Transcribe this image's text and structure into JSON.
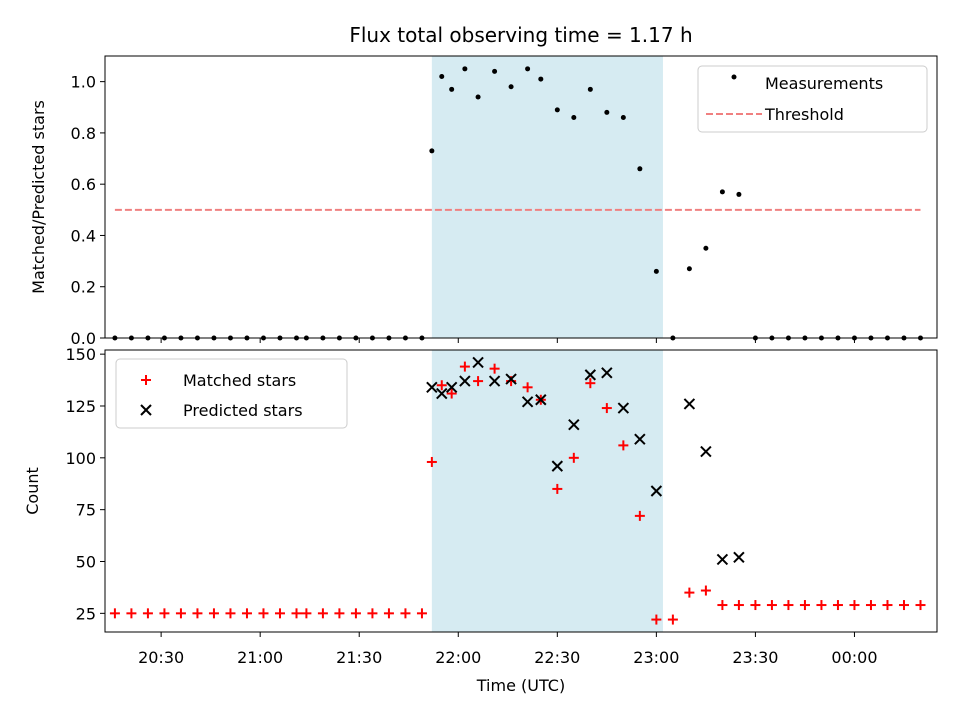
{
  "chart_data": {
    "type": "scatter",
    "title": "Flux total observing time = 1.17 h",
    "xlabel": "Time (UTC)",
    "x_range": [
      "20:13",
      "00:25"
    ],
    "x_ticks": [
      "20:30",
      "21:00",
      "21:30",
      "22:00",
      "22:30",
      "23:00",
      "23:30",
      "00:00"
    ],
    "shaded_interval": {
      "start": "21:52",
      "end": "23:02",
      "color": "#add8e6"
    },
    "x": [
      "20:16",
      "20:21",
      "20:26",
      "20:31",
      "20:36",
      "20:41",
      "20:46",
      "20:51",
      "20:56",
      "21:01",
      "21:06",
      "21:11",
      "21:14",
      "21:19",
      "21:24",
      "21:29",
      "21:34",
      "21:39",
      "21:44",
      "21:49",
      "21:52",
      "21:55",
      "21:58",
      "22:02",
      "22:06",
      "22:11",
      "22:16",
      "22:21",
      "22:25",
      "22:30",
      "22:35",
      "22:40",
      "22:45",
      "22:50",
      "22:55",
      "23:00",
      "23:05",
      "23:10",
      "23:15",
      "23:20",
      "23:25",
      "23:30",
      "23:35",
      "23:40",
      "23:45",
      "23:50",
      "23:55",
      "00:00",
      "00:05",
      "00:10",
      "00:15",
      "00:20"
    ],
    "panels": [
      {
        "ylabel": "Matched/Predicted stars",
        "ylim": [
          0,
          1.1
        ],
        "y_ticks": [
          "0.0",
          "0.2",
          "0.4",
          "0.6",
          "0.8",
          "1.0"
        ],
        "legend_position": "top-right",
        "series": [
          {
            "name": "Measurements",
            "marker": "dot",
            "color": "#000000",
            "points": [
              [
                "20:16",
                0
              ],
              [
                "20:21",
                0
              ],
              [
                "20:26",
                0
              ],
              [
                "20:31",
                0
              ],
              [
                "20:36",
                0
              ],
              [
                "20:41",
                0
              ],
              [
                "20:46",
                0
              ],
              [
                "20:51",
                0
              ],
              [
                "20:56",
                0
              ],
              [
                "21:01",
                0
              ],
              [
                "21:06",
                0
              ],
              [
                "21:11",
                0
              ],
              [
                "21:14",
                0
              ],
              [
                "21:19",
                0
              ],
              [
                "21:24",
                0
              ],
              [
                "21:29",
                0
              ],
              [
                "21:34",
                0
              ],
              [
                "21:39",
                0
              ],
              [
                "21:44",
                0
              ],
              [
                "21:49",
                0
              ],
              [
                "21:52",
                0.73
              ],
              [
                "21:55",
                1.02
              ],
              [
                "21:58",
                0.97
              ],
              [
                "22:02",
                1.05
              ],
              [
                "22:06",
                0.94
              ],
              [
                "22:11",
                1.04
              ],
              [
                "22:16",
                0.98
              ],
              [
                "22:21",
                1.05
              ],
              [
                "22:25",
                1.01
              ],
              [
                "22:30",
                0.89
              ],
              [
                "22:35",
                0.86
              ],
              [
                "22:40",
                0.97
              ],
              [
                "22:45",
                0.88
              ],
              [
                "22:50",
                0.86
              ],
              [
                "22:55",
                0.66
              ],
              [
                "23:00",
                0.26
              ],
              [
                "23:05",
                0
              ],
              [
                "23:10",
                0.27
              ],
              [
                "23:15",
                0.35
              ],
              [
                "23:20",
                0.57
              ],
              [
                "23:25",
                0.56
              ],
              [
                "23:30",
                0
              ],
              [
                "23:35",
                0
              ],
              [
                "23:40",
                0
              ],
              [
                "23:45",
                0
              ],
              [
                "23:50",
                0
              ],
              [
                "23:55",
                0
              ],
              [
                "00:00",
                0
              ],
              [
                "00:05",
                0
              ],
              [
                "00:10",
                0
              ],
              [
                "00:15",
                0
              ],
              [
                "00:20",
                0
              ]
            ]
          },
          {
            "name": "Threshold",
            "marker": "dashed-line",
            "color": "#f08080",
            "points": [
              [
                "20:16",
                0.5
              ],
              [
                "00:20",
                0.5
              ]
            ]
          }
        ]
      },
      {
        "ylabel": "Count",
        "ylim": [
          16,
          152
        ],
        "y_ticks": [
          "25",
          "50",
          "75",
          "100",
          "125",
          "150"
        ],
        "legend_position": "top-left",
        "series": [
          {
            "name": "Matched stars",
            "marker": "plus",
            "color": "#ff0000",
            "points": [
              [
                "20:16",
                25
              ],
              [
                "20:21",
                25
              ],
              [
                "20:26",
                25
              ],
              [
                "20:31",
                25
              ],
              [
                "20:36",
                25
              ],
              [
                "20:41",
                25
              ],
              [
                "20:46",
                25
              ],
              [
                "20:51",
                25
              ],
              [
                "20:56",
                25
              ],
              [
                "21:01",
                25
              ],
              [
                "21:06",
                25
              ],
              [
                "21:11",
                25
              ],
              [
                "21:14",
                25
              ],
              [
                "21:19",
                25
              ],
              [
                "21:24",
                25
              ],
              [
                "21:29",
                25
              ],
              [
                "21:34",
                25
              ],
              [
                "21:39",
                25
              ],
              [
                "21:44",
                25
              ],
              [
                "21:49",
                25
              ],
              [
                "21:52",
                98
              ],
              [
                "21:55",
                135
              ],
              [
                "21:58",
                131
              ],
              [
                "22:02",
                144
              ],
              [
                "22:06",
                137
              ],
              [
                "22:11",
                143
              ],
              [
                "22:16",
                137
              ],
              [
                "22:21",
                134
              ],
              [
                "22:25",
                128
              ],
              [
                "22:30",
                85
              ],
              [
                "22:35",
                100
              ],
              [
                "22:40",
                136
              ],
              [
                "22:45",
                124
              ],
              [
                "22:50",
                106
              ],
              [
                "22:55",
                72
              ],
              [
                "23:00",
                22
              ],
              [
                "23:05",
                22
              ],
              [
                "23:10",
                35
              ],
              [
                "23:15",
                36
              ],
              [
                "23:20",
                29
              ],
              [
                "23:25",
                29
              ],
              [
                "23:30",
                29
              ],
              [
                "23:35",
                29
              ],
              [
                "23:40",
                29
              ],
              [
                "23:45",
                29
              ],
              [
                "23:50",
                29
              ],
              [
                "23:55",
                29
              ],
              [
                "00:00",
                29
              ],
              [
                "00:05",
                29
              ],
              [
                "00:10",
                29
              ],
              [
                "00:15",
                29
              ],
              [
                "00:20",
                29
              ]
            ]
          },
          {
            "name": "Predicted stars",
            "marker": "x",
            "color": "#000000",
            "points": [
              [
                "21:52",
                134
              ],
              [
                "21:55",
                131
              ],
              [
                "21:58",
                134
              ],
              [
                "22:02",
                137
              ],
              [
                "22:06",
                146
              ],
              [
                "22:11",
                137
              ],
              [
                "22:16",
                138
              ],
              [
                "22:21",
                127
              ],
              [
                "22:25",
                128
              ],
              [
                "22:30",
                96
              ],
              [
                "22:35",
                116
              ],
              [
                "22:40",
                140
              ],
              [
                "22:45",
                141
              ],
              [
                "22:50",
                124
              ],
              [
                "22:55",
                109
              ],
              [
                "23:00",
                84
              ],
              [
                "23:10",
                126
              ],
              [
                "23:15",
                103
              ],
              [
                "23:20",
                51
              ],
              [
                "23:25",
                52
              ]
            ]
          }
        ]
      }
    ]
  }
}
